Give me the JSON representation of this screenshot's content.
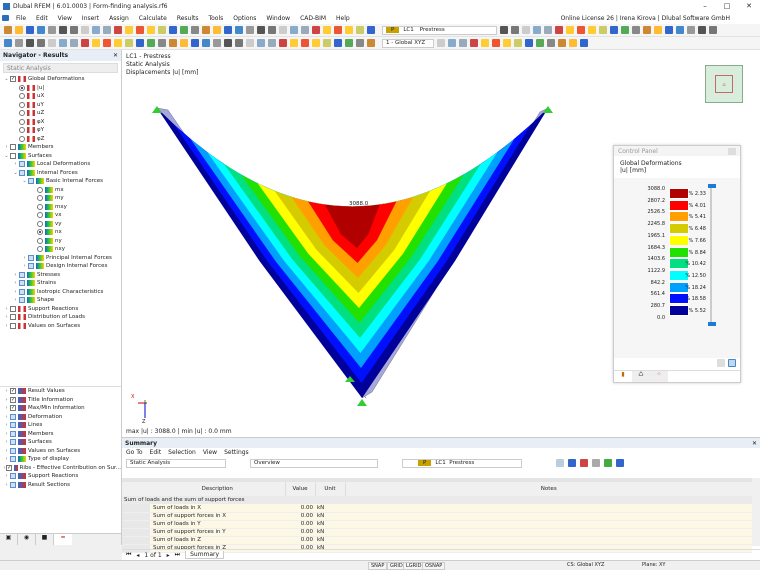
{
  "window": {
    "title": "Dlubal RFEM | 6.01.0003 | Form-finding analysis.rf6"
  },
  "menu": {
    "items": [
      "File",
      "Edit",
      "View",
      "Insert",
      "Assign",
      "Calculate",
      "Results",
      "Tools",
      "Options",
      "Window",
      "CAD-BIM",
      "Help"
    ],
    "license": "Online License 26 | Irena Kirova | Dlubal Software GmbH"
  },
  "toolbar": {
    "lc_badge": "P",
    "lc_id": "LC1",
    "lc_name": "Prestress",
    "coord_system": "1 - Global XYZ"
  },
  "navigator": {
    "title": "Navigator - Results",
    "analysis": "Static Analysis",
    "tree": [
      {
        "label": "Global Deformations",
        "level": 0,
        "type": "check",
        "checked": true,
        "expanded": true
      },
      {
        "label": "|u|",
        "level": 1,
        "type": "radio",
        "on": true
      },
      {
        "label": "uX",
        "level": 1,
        "type": "radio"
      },
      {
        "label": "uY",
        "level": 1,
        "type": "radio"
      },
      {
        "label": "uZ",
        "level": 1,
        "type": "radio"
      },
      {
        "label": "φX",
        "level": 1,
        "type": "radio"
      },
      {
        "label": "φY",
        "level": 1,
        "type": "radio"
      },
      {
        "label": "φZ",
        "level": 1,
        "type": "radio"
      },
      {
        "label": "Members",
        "level": 0,
        "type": "check"
      },
      {
        "label": "Surfaces",
        "level": 0,
        "type": "check",
        "expanded": true
      },
      {
        "label": "Local Deformations",
        "level": 1,
        "type": "bcheck"
      },
      {
        "label": "Internal Forces",
        "level": 1,
        "type": "bcheck",
        "expanded": true
      },
      {
        "label": "Basic Internal Forces",
        "level": 2,
        "type": "bcheck",
        "expanded": true
      },
      {
        "label": "mx",
        "level": 3,
        "type": "radio"
      },
      {
        "label": "my",
        "level": 3,
        "type": "radio"
      },
      {
        "label": "mxy",
        "level": 3,
        "type": "radio"
      },
      {
        "label": "vx",
        "level": 3,
        "type": "radio"
      },
      {
        "label": "vy",
        "level": 3,
        "type": "radio"
      },
      {
        "label": "nx",
        "level": 3,
        "type": "radio",
        "on": true
      },
      {
        "label": "ny",
        "level": 3,
        "type": "radio"
      },
      {
        "label": "nxy",
        "level": 3,
        "type": "radio"
      },
      {
        "label": "Principal Internal Forces",
        "level": 2,
        "type": "bcheck"
      },
      {
        "label": "Design Internal Forces",
        "level": 2,
        "type": "bcheck"
      },
      {
        "label": "Stresses",
        "level": 1,
        "type": "bcheck"
      },
      {
        "label": "Strains",
        "level": 1,
        "type": "bcheck"
      },
      {
        "label": "Isotropic Characteristics",
        "level": 1,
        "type": "bcheck"
      },
      {
        "label": "Shape",
        "level": 1,
        "type": "bcheck"
      },
      {
        "label": "Support Reactions",
        "level": 0,
        "type": "check"
      },
      {
        "label": "Distribution of Loads",
        "level": 0,
        "type": "check"
      },
      {
        "label": "Values on Surfaces",
        "level": 0,
        "type": "check"
      }
    ],
    "display_tree": [
      {
        "label": "Result Values",
        "checked": true
      },
      {
        "label": "Title Information",
        "checked": true
      },
      {
        "label": "Max/Min Information",
        "checked": true
      },
      {
        "label": "Deformation"
      },
      {
        "label": "Lines"
      },
      {
        "label": "Members"
      },
      {
        "label": "Surfaces"
      },
      {
        "label": "Values on Surfaces"
      },
      {
        "label": "Type of display"
      },
      {
        "label": "Ribs - Effective Contribution on Sur...",
        "checked": true
      },
      {
        "label": "Support Reactions"
      },
      {
        "label": "Result Sections"
      }
    ]
  },
  "viewport": {
    "info": [
      "LC1 - Prestress",
      "Static Analysis",
      "Displacements |u| [mm]"
    ],
    "max_label": "3088.0",
    "maxmin": "max |u| : 3088.0 | min |u| : 0.0 mm",
    "axis_x": "X",
    "axis_z": "Z"
  },
  "control_panel": {
    "title": "Control Panel",
    "heading": "Global Deformations",
    "unit": "|u| [mm]",
    "values": [
      "3088.0",
      "2807.2",
      "2526.5",
      "2245.8",
      "1965.1",
      "1684.3",
      "1403.6",
      "1122.9",
      "842.2",
      "561.4",
      "280.7",
      "0.0"
    ],
    "colors": [
      "#b00000",
      "#ff0000",
      "#ffa000",
      "#d4cc00",
      "#ffff00",
      "#22e000",
      "#00e080",
      "#00ffff",
      "#00a0ff",
      "#0010ff",
      "#00009a"
    ],
    "percents": [
      "2.33 %",
      "4.01 %",
      "5.41 %",
      "6.48 %",
      "7.66 %",
      "8.84 %",
      "10.42 %",
      "12.50 %",
      "18.24 %",
      "18.58 %",
      "5.52 %"
    ]
  },
  "summary": {
    "title": "Summary",
    "menu": [
      "Go To",
      "Edit",
      "Selection",
      "View",
      "Settings"
    ],
    "analysis": "Static Analysis",
    "view": "Overview",
    "lc_badge": "P",
    "lc_id": "LC1",
    "lc_name": "Prestress",
    "columns": [
      "Description",
      "Value",
      "Unit",
      "Notes"
    ],
    "group": "Sum of loads and the sum of support forces",
    "rows": [
      {
        "desc": "Sum of loads in X",
        "value": "0.00",
        "unit": "kN"
      },
      {
        "desc": "Sum of support forces in X",
        "value": "0.00",
        "unit": "kN"
      },
      {
        "desc": "Sum of loads in Y",
        "value": "0.00",
        "unit": "kN"
      },
      {
        "desc": "Sum of support forces in Y",
        "value": "0.00",
        "unit": "kN"
      },
      {
        "desc": "Sum of loads in Z",
        "value": "0.00",
        "unit": "kN"
      },
      {
        "desc": "Sum of support forces in Z",
        "value": "0.00",
        "unit": "kN"
      }
    ],
    "pager": "1 of 1",
    "tab": "Summary"
  },
  "statusbar": {
    "toggles": [
      "SNAP",
      "GRID",
      "LGRID",
      "OSNAP"
    ],
    "cs": "CS: Global XYZ",
    "plane": "Plane: XY"
  }
}
